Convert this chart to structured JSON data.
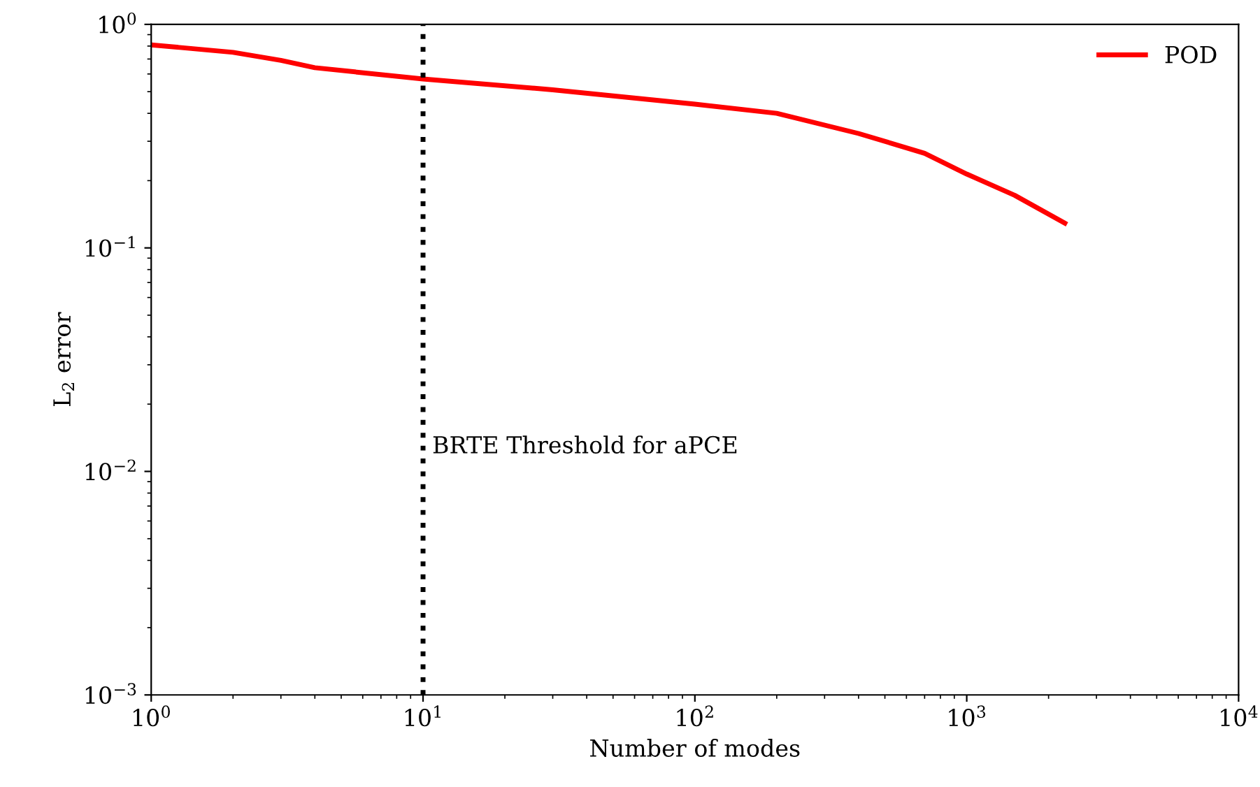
{
  "chart_data": {
    "type": "line",
    "xlabel": "Number of modes",
    "ylabel": "L$_{2}$ error",
    "log": "xy",
    "grid": false,
    "legend": "top right",
    "line_style": "solid",
    "marker": "none",
    "xlim": [
      1,
      10000
    ],
    "ylim": [
      0.001,
      1
    ],
    "xticks": [
      {
        "value": 1,
        "label": "10$^{0}$"
      },
      {
        "value": 10,
        "label": "10$^{1}$"
      },
      {
        "value": 100,
        "label": "10$^{2}$"
      },
      {
        "value": 1000,
        "label": "10$^{3}$"
      },
      {
        "value": 10000,
        "label": "10$^{4}$"
      }
    ],
    "yticks": [
      {
        "value": 0.001,
        "label": "10$^{−3}$"
      },
      {
        "value": 0.01,
        "label": "10$^{−2}$"
      },
      {
        "value": 0.1,
        "label": "10$^{−1}$"
      },
      {
        "value": 1,
        "label": "10$^{0}$"
      }
    ],
    "ref_lines": [
      {
        "axis": "x",
        "value": 10,
        "label": "BRTE Threshold for aPCE",
        "color": "#000000",
        "line_style": "dotted"
      }
    ],
    "series": [
      {
        "name": "POD",
        "color": "#ff0000",
        "x": [
          1,
          2,
          3,
          4,
          10,
          30,
          100,
          200,
          400,
          700,
          1000,
          1500,
          2296
        ],
        "values": [
          0.81,
          0.75,
          0.69,
          0.64,
          0.57,
          0.51,
          0.44,
          0.4,
          0.325,
          0.265,
          0.214,
          0.172,
          0.129
        ]
      }
    ]
  }
}
